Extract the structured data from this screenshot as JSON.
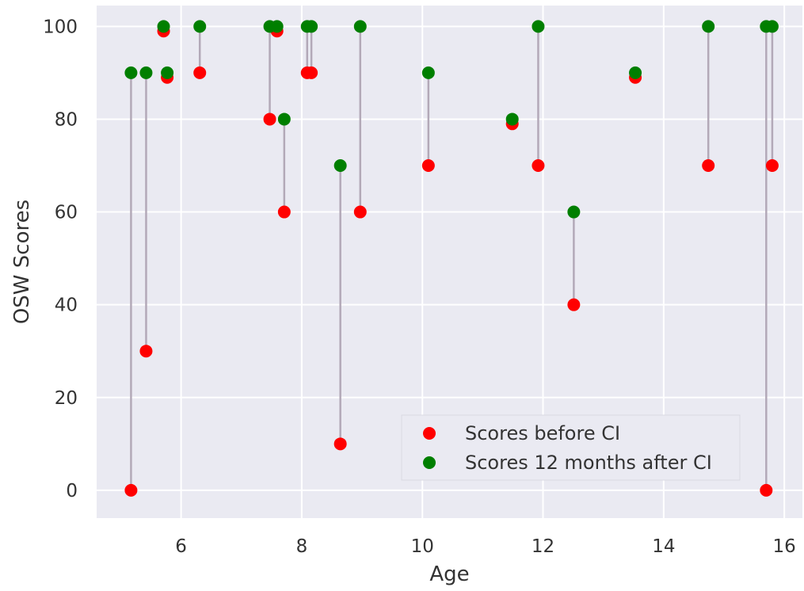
{
  "chart_data": {
    "type": "scatter",
    "xlabel": "Age",
    "ylabel": "OSW Scores",
    "xlim": [
      4.6,
      16.3
    ],
    "ylim": [
      -6,
      104.5
    ],
    "xticks": [
      6,
      8,
      10,
      12,
      14,
      16
    ],
    "yticks": [
      0,
      20,
      40,
      60,
      80,
      100
    ],
    "grid": true,
    "legend_position": "lower-right",
    "connector_color": "#b3a9b8",
    "series": [
      {
        "name": "Scores before CI",
        "color": "#ff0000",
        "x": [
          5.17,
          5.42,
          5.71,
          5.77,
          6.31,
          7.47,
          7.59,
          7.71,
          8.09,
          8.16,
          8.64,
          8.97,
          10.1,
          11.49,
          11.92,
          12.51,
          13.53,
          14.74,
          15.7,
          15.8
        ],
        "y": [
          0,
          30,
          99,
          89,
          90,
          80,
          99,
          60,
          90,
          90,
          10,
          60,
          70,
          79,
          70,
          40,
          89,
          70,
          0,
          70
        ]
      },
      {
        "name": "Scores 12 months after CI",
        "color": "#007f00",
        "x": [
          5.17,
          5.42,
          5.71,
          5.77,
          6.31,
          7.47,
          7.59,
          7.71,
          8.09,
          8.16,
          8.64,
          8.97,
          10.1,
          11.49,
          11.92,
          12.51,
          13.53,
          14.74,
          15.7,
          15.8
        ],
        "y": [
          90,
          90,
          100,
          90,
          100,
          100,
          100,
          80,
          100,
          100,
          70,
          100,
          90,
          80,
          100,
          60,
          90,
          100,
          100,
          100
        ]
      }
    ]
  }
}
